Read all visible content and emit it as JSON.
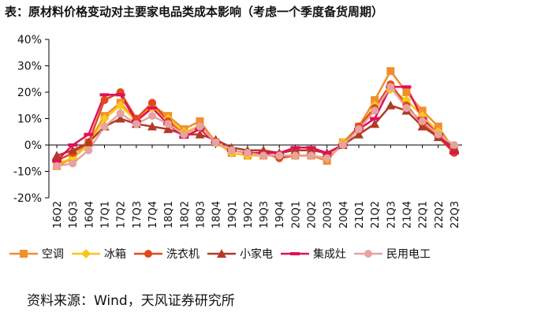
{
  "title": "表：原材料价格变动对主要家电品类成本影响（考虑一个季度备货周期）",
  "source": "资料来源：Wind，天风证券研究所",
  "chart_data": {
    "type": "line",
    "categories": [
      "16Q2",
      "16Q3",
      "16Q4",
      "17Q1",
      "17Q2",
      "17Q3",
      "17Q4",
      "18Q1",
      "18Q2",
      "18Q3",
      "18Q4",
      "19Q1",
      "19Q2",
      "19Q3",
      "19Q4",
      "20Q1",
      "20Q2",
      "20Q3",
      "20Q4",
      "21Q1",
      "21Q2",
      "21Q3",
      "21Q4",
      "22Q1",
      "22Q2",
      "22Q3"
    ],
    "ylim": [
      -20,
      40
    ],
    "yticks": [
      -20,
      -10,
      0,
      10,
      20,
      30,
      40
    ],
    "ytick_labels": [
      "-20%",
      "-10%",
      "0%",
      "10%",
      "20%",
      "30%",
      "40%"
    ],
    "series": [
      {
        "name": "空调",
        "color": "#F28E2B",
        "marker": "square",
        "values": [
          -8,
          -5,
          1,
          11,
          16,
          9,
          15,
          11,
          6,
          9,
          1,
          -3,
          -4,
          -4,
          -4,
          -4,
          -4,
          -6,
          1,
          7,
          17,
          28,
          20,
          13,
          7,
          -2
        ]
      },
      {
        "name": "冰箱",
        "color": "#F8C81C",
        "marker": "diamond",
        "values": [
          -7,
          -5,
          0,
          10,
          15,
          9,
          14,
          10,
          5,
          7,
          1,
          -3,
          -4,
          -4,
          -4,
          -4,
          -4,
          -5,
          1,
          6,
          15,
          21,
          17,
          11,
          5,
          -2
        ]
      },
      {
        "name": "洗衣机",
        "color": "#E0491E",
        "marker": "circle",
        "values": [
          -6,
          -3,
          1,
          17,
          20,
          10,
          16,
          9,
          4,
          7,
          1,
          -2,
          -3,
          -3,
          -5,
          -4,
          -4,
          -5,
          0,
          7,
          14,
          23,
          15,
          8,
          3,
          -3
        ]
      },
      {
        "name": "小家电",
        "color": "#B23A26",
        "marker": "triangle",
        "values": [
          -4,
          -2,
          1,
          7,
          10,
          8,
          7,
          6,
          4,
          4,
          2,
          -1,
          -2,
          -2,
          -3,
          -2,
          -2,
          -3,
          0,
          4,
          8,
          15,
          13,
          7,
          3,
          -1
        ]
      },
      {
        "name": "集成灶",
        "color": "#E0105A",
        "marker": "dash",
        "values": [
          -6,
          0,
          4,
          19,
          19,
          9,
          14,
          8,
          3,
          6,
          1,
          -2,
          -3,
          -3,
          -3,
          -1,
          -1,
          -3,
          0,
          6,
          10,
          22,
          22,
          10,
          4,
          -3
        ]
      },
      {
        "name": "民用电工",
        "color": "#E5A3A1",
        "marker": "circle",
        "values": [
          -8,
          -7,
          -2,
          7,
          12,
          8,
          11,
          8,
          4,
          7,
          1,
          -2,
          -3,
          -4,
          -4,
          -4,
          -4,
          -5,
          0,
          6,
          13,
          22,
          14,
          9,
          4,
          0
        ]
      }
    ]
  }
}
